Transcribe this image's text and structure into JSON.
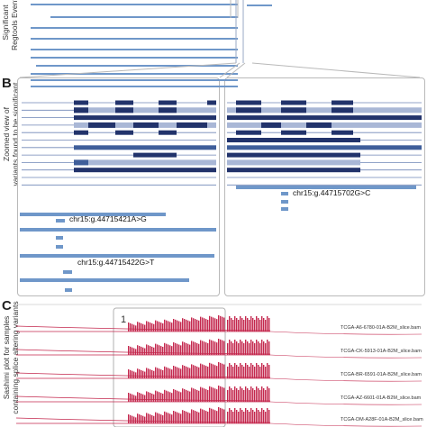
{
  "panels": {
    "a": {
      "ylabel_lines": [
        "Significant",
        "Regtools Events"
      ]
    },
    "b": {
      "letter": "B",
      "ylabel_lines": [
        "Zoomed view of",
        "variants found to be significant"
      ],
      "variants": [
        {
          "id": "v1",
          "label": "chr15:g.44715421A>G"
        },
        {
          "id": "v2",
          "label": "chr15:g.44715422G>T"
        },
        {
          "id": "v3",
          "label": "chr15:g.44715702G>C"
        }
      ]
    },
    "c": {
      "letter": "C",
      "ylabel_lines": [
        "Sashimi plot for samples",
        "containing splice altering variants"
      ],
      "region_label": "1",
      "samples": [
        "TCGA-A6-6780-01A-B2M_slice.bam",
        "TCGA-CK-5913-01A-B2M_slice.bam",
        "TCGA-BR-6591-01A-B2M_slice.bam",
        "TCGA-AZ-6601-01A-B2M_slice.bam",
        "TCGA-DM-A28F-01A-B2M_slice.bam"
      ]
    }
  },
  "colors": {
    "track_blue": "#6f97c9",
    "exon_dark": "#22336b",
    "exon_mid": "#3f5e9a",
    "exon_light": "#a9b7d6",
    "sashimi_red": "#c4284e",
    "box_grey": "#b9b9b9"
  }
}
